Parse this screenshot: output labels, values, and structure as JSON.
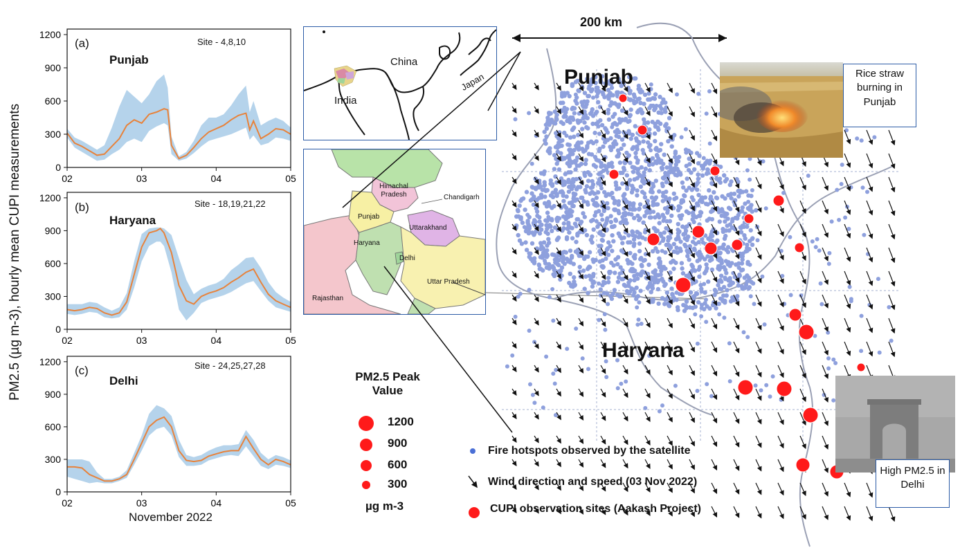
{
  "y_axis_label": "PM2.5 (µg m-3), hourly mean CUPI measurements",
  "x_axis_label": "November 2022",
  "chart_data": [
    {
      "type": "line",
      "panel": "(a)",
      "region": "Punjab",
      "sites": "Site - 4,8,10",
      "x_ticks": [
        "02",
        "03",
        "04",
        "05"
      ],
      "y_ticks": [
        0,
        300,
        600,
        900,
        1200
      ],
      "xlim": [
        2,
        5
      ],
      "ylim": [
        0,
        1250
      ],
      "series": [
        {
          "x": [
            2.0,
            2.1,
            2.2,
            2.3,
            2.4,
            2.5,
            2.6,
            2.7,
            2.8,
            2.9,
            3.0,
            3.1,
            3.2,
            3.3,
            3.35,
            3.4,
            3.5,
            3.6,
            3.7,
            3.8,
            3.9,
            4.0,
            4.1,
            4.2,
            4.3,
            4.4,
            4.45,
            4.5,
            4.6,
            4.7,
            4.8,
            4.9,
            5.0
          ],
          "y": [
            310,
            220,
            190,
            150,
            110,
            120,
            190,
            260,
            380,
            430,
            400,
            480,
            500,
            530,
            520,
            200,
            80,
            110,
            180,
            260,
            320,
            350,
            380,
            430,
            470,
            490,
            340,
            420,
            260,
            300,
            350,
            340,
            300
          ]
        },
        {
          "x": [
            2.0,
            2.1,
            2.2,
            2.3,
            2.4,
            2.5,
            2.6,
            2.7,
            2.8,
            2.9,
            3.0,
            3.1,
            3.2,
            3.3,
            3.35,
            3.4,
            3.5,
            3.6,
            3.7,
            3.8,
            3.9,
            4.0,
            4.1,
            4.2,
            4.3,
            4.4,
            4.45,
            4.5,
            4.6,
            4.7,
            4.8,
            4.9,
            5.0
          ],
          "low": [
            270,
            180,
            140,
            100,
            60,
            70,
            120,
            160,
            230,
            260,
            230,
            330,
            370,
            400,
            380,
            120,
            60,
            80,
            130,
            190,
            240,
            260,
            280,
            300,
            330,
            360,
            250,
            290,
            200,
            220,
            270,
            260,
            240
          ],
          "high": [
            350,
            270,
            240,
            200,
            160,
            200,
            360,
            550,
            700,
            640,
            580,
            660,
            780,
            840,
            720,
            280,
            100,
            140,
            240,
            380,
            450,
            450,
            480,
            560,
            660,
            740,
            500,
            600,
            380,
            420,
            450,
            420,
            360
          ]
        }
      ]
    },
    {
      "type": "line",
      "panel": "(b)",
      "region": "Haryana",
      "sites": "Site - 18,19,21,22",
      "x_ticks": [
        "02",
        "03",
        "04",
        "05"
      ],
      "y_ticks": [
        0,
        300,
        600,
        900,
        1200
      ],
      "xlim": [
        2,
        5
      ],
      "ylim": [
        0,
        1250
      ],
      "series": [
        {
          "x": [
            2.0,
            2.1,
            2.2,
            2.3,
            2.4,
            2.5,
            2.6,
            2.7,
            2.8,
            2.9,
            3.0,
            3.1,
            3.2,
            3.25,
            3.3,
            3.4,
            3.5,
            3.6,
            3.7,
            3.8,
            3.9,
            4.0,
            4.1,
            4.2,
            4.3,
            4.4,
            4.5,
            4.6,
            4.7,
            4.8,
            4.9,
            5.0
          ],
          "y": [
            180,
            170,
            180,
            200,
            190,
            150,
            130,
            150,
            250,
            500,
            750,
            880,
            900,
            920,
            880,
            700,
            400,
            260,
            230,
            300,
            330,
            350,
            380,
            430,
            470,
            520,
            550,
            430,
            320,
            260,
            230,
            200
          ]
        },
        {
          "x": [
            2.0,
            2.1,
            2.2,
            2.3,
            2.4,
            2.5,
            2.6,
            2.7,
            2.8,
            2.9,
            3.0,
            3.1,
            3.2,
            3.25,
            3.3,
            3.4,
            3.5,
            3.6,
            3.7,
            3.8,
            3.9,
            4.0,
            4.1,
            4.2,
            4.3,
            4.4,
            4.5,
            4.6,
            4.7,
            4.8,
            4.9,
            5.0
          ],
          "low": [
            140,
            130,
            140,
            160,
            150,
            110,
            100,
            110,
            180,
            380,
            620,
            760,
            800,
            800,
            760,
            520,
            180,
            80,
            150,
            240,
            270,
            290,
            310,
            340,
            380,
            420,
            440,
            350,
            260,
            200,
            180,
            160
          ],
          "high": [
            230,
            230,
            230,
            250,
            240,
            200,
            170,
            200,
            330,
            620,
            870,
            920,
            930,
            930,
            920,
            860,
            650,
            450,
            320,
            370,
            400,
            420,
            460,
            540,
            590,
            650,
            660,
            560,
            430,
            340,
            290,
            250
          ]
        }
      ]
    },
    {
      "type": "line",
      "panel": "(c)",
      "region": "Delhi",
      "sites": "Site - 24,25,27,28",
      "x_ticks": [
        "02",
        "03",
        "04",
        "05"
      ],
      "y_ticks": [
        0,
        300,
        600,
        900,
        1200
      ],
      "xlim": [
        2,
        5
      ],
      "ylim": [
        0,
        1250
      ],
      "series": [
        {
          "x": [
            2.0,
            2.1,
            2.2,
            2.3,
            2.4,
            2.5,
            2.6,
            2.7,
            2.8,
            2.9,
            3.0,
            3.1,
            3.2,
            3.3,
            3.4,
            3.5,
            3.6,
            3.7,
            3.8,
            3.9,
            4.0,
            4.1,
            4.2,
            4.3,
            4.4,
            4.5,
            4.6,
            4.7,
            4.8,
            4.9,
            5.0
          ],
          "y": [
            230,
            230,
            220,
            160,
            130,
            100,
            100,
            120,
            160,
            300,
            450,
            600,
            660,
            690,
            600,
            380,
            290,
            280,
            290,
            330,
            350,
            370,
            380,
            380,
            510,
            400,
            300,
            250,
            300,
            280,
            250
          ]
        },
        {
          "x": [
            2.0,
            2.1,
            2.2,
            2.3,
            2.4,
            2.5,
            2.6,
            2.7,
            2.8,
            2.9,
            3.0,
            3.1,
            3.2,
            3.3,
            3.4,
            3.5,
            3.6,
            3.7,
            3.8,
            3.9,
            4.0,
            4.1,
            4.2,
            4.3,
            4.4,
            4.5,
            4.6,
            4.7,
            4.8,
            4.9,
            5.0
          ],
          "low": [
            140,
            120,
            100,
            80,
            90,
            80,
            80,
            100,
            130,
            250,
            380,
            520,
            580,
            600,
            520,
            320,
            240,
            240,
            250,
            290,
            310,
            330,
            340,
            330,
            420,
            330,
            240,
            210,
            250,
            240,
            220
          ],
          "high": [
            300,
            300,
            300,
            280,
            180,
            120,
            120,
            140,
            200,
            360,
            520,
            720,
            800,
            770,
            700,
            480,
            340,
            320,
            340,
            380,
            410,
            430,
            430,
            440,
            570,
            480,
            360,
            300,
            340,
            320,
            290
          ]
        }
      ]
    },
    {
      "type": "scatter",
      "legend_title": "PM2.5 Peak Value",
      "legend_sizes": [
        1200,
        900,
        600,
        300
      ],
      "legend_unit": "µg m-3",
      "legend": {
        "hotspots": "Fire hotspots observed by the satellite",
        "wind": "Wind direction and speed (03 Nov 2022)",
        "sites": "CUPI observation sites (Aakash Project)"
      },
      "scale_bar": "200 km",
      "map_regions": {
        "north": "Punjab",
        "south": "Haryana"
      },
      "colors": {
        "hotspot": "#8ea0dd",
        "site": "#ff1a1a",
        "band": "#a8cbe8",
        "line": "#e8823a"
      }
    }
  ],
  "inset_asia": {
    "labels": [
      "China",
      "Japan",
      "India"
    ]
  },
  "inset_states": {
    "labels": [
      "Himachal Pradesh",
      "Chandigarh",
      "Punjab",
      "Uttarakhand",
      "Haryana",
      "Delhi",
      "Uttar Pradesh",
      "Rajasthan"
    ]
  },
  "photo_punjab_caption": "Rice straw burning in Punjab",
  "photo_delhi_caption": "High PM2.5 in Delhi"
}
